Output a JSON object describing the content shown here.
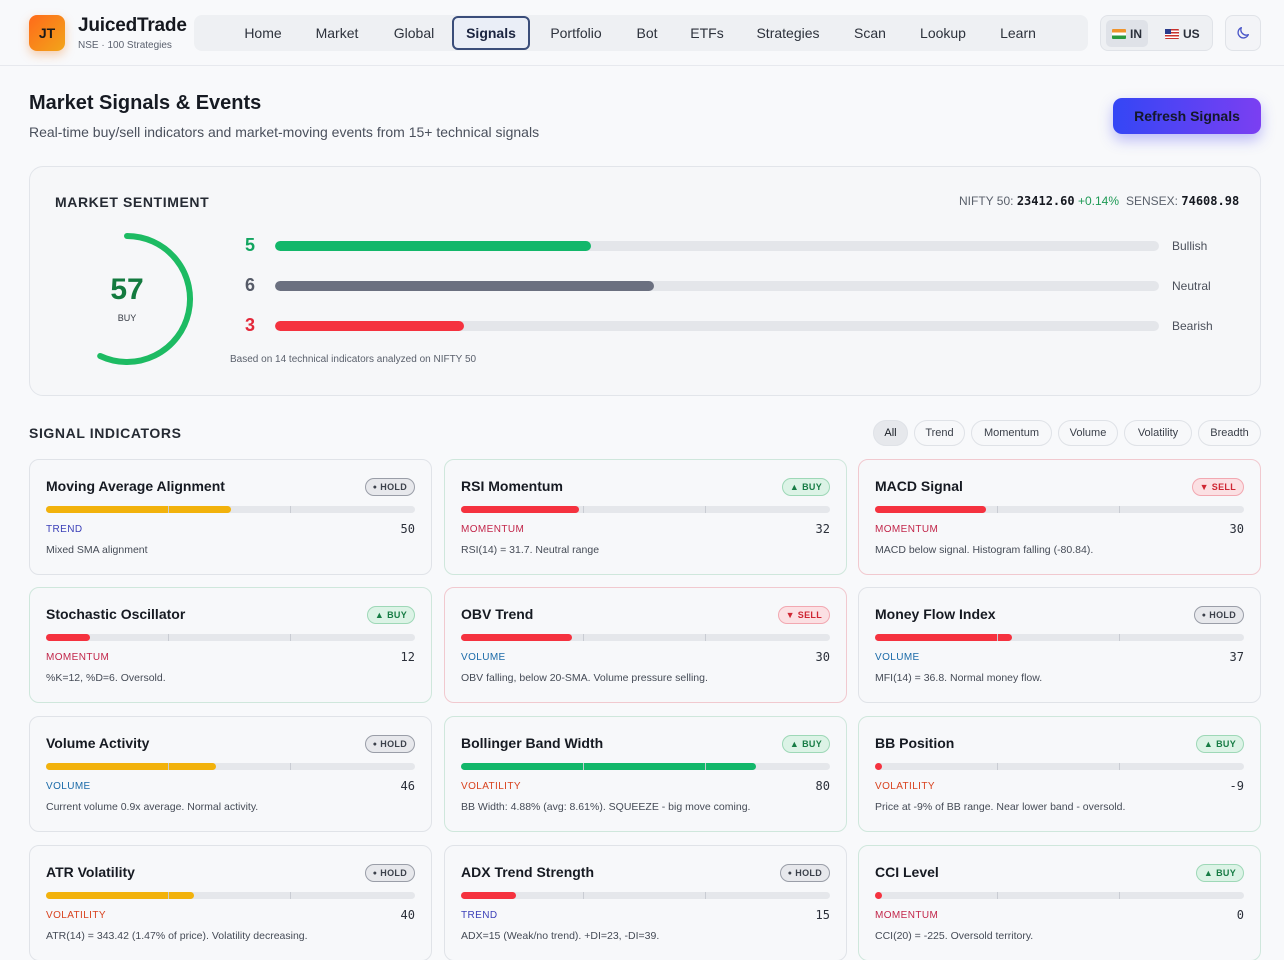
{
  "header": {
    "logo_text": "JT",
    "brand": "JuicedTrade",
    "subtitle": "NSE · 100 Strategies",
    "nav": [
      {
        "label": "Home",
        "active": false
      },
      {
        "label": "Market",
        "active": false
      },
      {
        "label": "Global",
        "active": false
      },
      {
        "label": "Signals",
        "active": true
      },
      {
        "label": "Portfolio",
        "active": false
      },
      {
        "label": "Bot",
        "active": false
      },
      {
        "label": "ETFs",
        "active": false
      },
      {
        "label": "Strategies",
        "active": false
      },
      {
        "label": "Scan",
        "active": false
      },
      {
        "label": "Lookup",
        "active": false
      },
      {
        "label": "Learn",
        "active": false
      }
    ],
    "markets": [
      {
        "label": "IN",
        "flag": "india-flag-icon",
        "active": true
      },
      {
        "label": "US",
        "flag": "us-flag-icon",
        "active": false
      }
    ],
    "theme_icon": "moon-icon"
  },
  "page": {
    "title": "Market Signals & Events",
    "subtitle": "Real-time buy/sell indicators and market-moving events from 15+ technical signals",
    "refresh_label": "Refresh Signals"
  },
  "sentiment": {
    "title": "MARKET SENTIMENT",
    "indices": [
      {
        "name": "NIFTY 50:",
        "value": "23412.60",
        "change": "+0.14%"
      },
      {
        "name": "SENSEX:",
        "value": "74608.98",
        "change": ""
      }
    ],
    "score": "57",
    "score_label": "BUY",
    "score_fraction": 0.57,
    "total": 14,
    "counts": [
      {
        "count": 5,
        "label": "Bullish",
        "color": "#12b76a"
      },
      {
        "count": 6,
        "label": "Neutral",
        "color": "#6b7080"
      },
      {
        "count": 3,
        "label": "Bearish",
        "color": "#f5323f"
      }
    ],
    "footnote": "Based on 14 technical indicators analyzed on NIFTY 50"
  },
  "indicators": {
    "title": "SIGNAL INDICATORS",
    "filters": [
      {
        "label": "All",
        "active": true
      },
      {
        "label": "Trend",
        "active": false
      },
      {
        "label": "Momentum",
        "active": false
      },
      {
        "label": "Volume",
        "active": false
      },
      {
        "label": "Volatility",
        "active": false
      },
      {
        "label": "Breadth",
        "active": false
      }
    ],
    "cards": [
      {
        "name": "Moving Average Alignment",
        "signal": "HOLD",
        "category": "TREND",
        "value": "50",
        "score": 50,
        "desc": "Mixed SMA alignment"
      },
      {
        "name": "RSI Momentum",
        "signal": "BUY",
        "category": "MOMENTUM",
        "value": "32",
        "score": 32,
        "desc": "RSI(14) = 31.7. Neutral range"
      },
      {
        "name": "MACD Signal",
        "signal": "SELL",
        "category": "MOMENTUM",
        "value": "30",
        "score": 30,
        "desc": "MACD below signal. Histogram falling (-80.84)."
      },
      {
        "name": "Stochastic Oscillator",
        "signal": "BUY",
        "category": "MOMENTUM",
        "value": "12",
        "score": 12,
        "desc": "%K=12, %D=6. Oversold."
      },
      {
        "name": "OBV Trend",
        "signal": "SELL",
        "category": "VOLUME",
        "value": "30",
        "score": 30,
        "desc": "OBV falling, below 20-SMA. Volume pressure selling."
      },
      {
        "name": "Money Flow Index",
        "signal": "HOLD",
        "category": "VOLUME",
        "value": "37",
        "score": 37,
        "desc": "MFI(14) = 36.8. Normal money flow."
      },
      {
        "name": "Volume Activity",
        "signal": "HOLD",
        "category": "VOLUME",
        "value": "46",
        "score": 46,
        "desc": "Current volume 0.9x average. Normal activity."
      },
      {
        "name": "Bollinger Band Width",
        "signal": "BUY",
        "category": "VOLATILITY",
        "value": "80",
        "score": 80,
        "desc": "BB Width: 4.88% (avg: 8.61%). SQUEEZE - big move coming."
      },
      {
        "name": "BB Position",
        "signal": "BUY",
        "category": "VOLATILITY",
        "value": "-9",
        "score": 0,
        "desc": "Price at -9% of BB range. Near lower band - oversold."
      },
      {
        "name": "ATR Volatility",
        "signal": "HOLD",
        "category": "VOLATILITY",
        "value": "40",
        "score": 40,
        "desc": "ATR(14) = 343.42 (1.47% of price). Volatility decreasing."
      },
      {
        "name": "ADX Trend Strength",
        "signal": "HOLD",
        "category": "TREND",
        "value": "15",
        "score": 15,
        "desc": "ADX=15 (Weak/no trend). +DI=23, -DI=39."
      },
      {
        "name": "CCI Level",
        "signal": "BUY",
        "category": "MOMENTUM",
        "value": "0",
        "score": 0,
        "desc": "CCI(20) = -225. Oversold territory."
      }
    ]
  },
  "colors": {
    "trend": "#3b3fb8",
    "momentum": "#c2264a",
    "volume": "#1a6aa8",
    "volatility": "#d8421e",
    "bar_red": "#f5323f",
    "bar_yellow": "#f2b20c",
    "bar_green": "#12b76a"
  }
}
